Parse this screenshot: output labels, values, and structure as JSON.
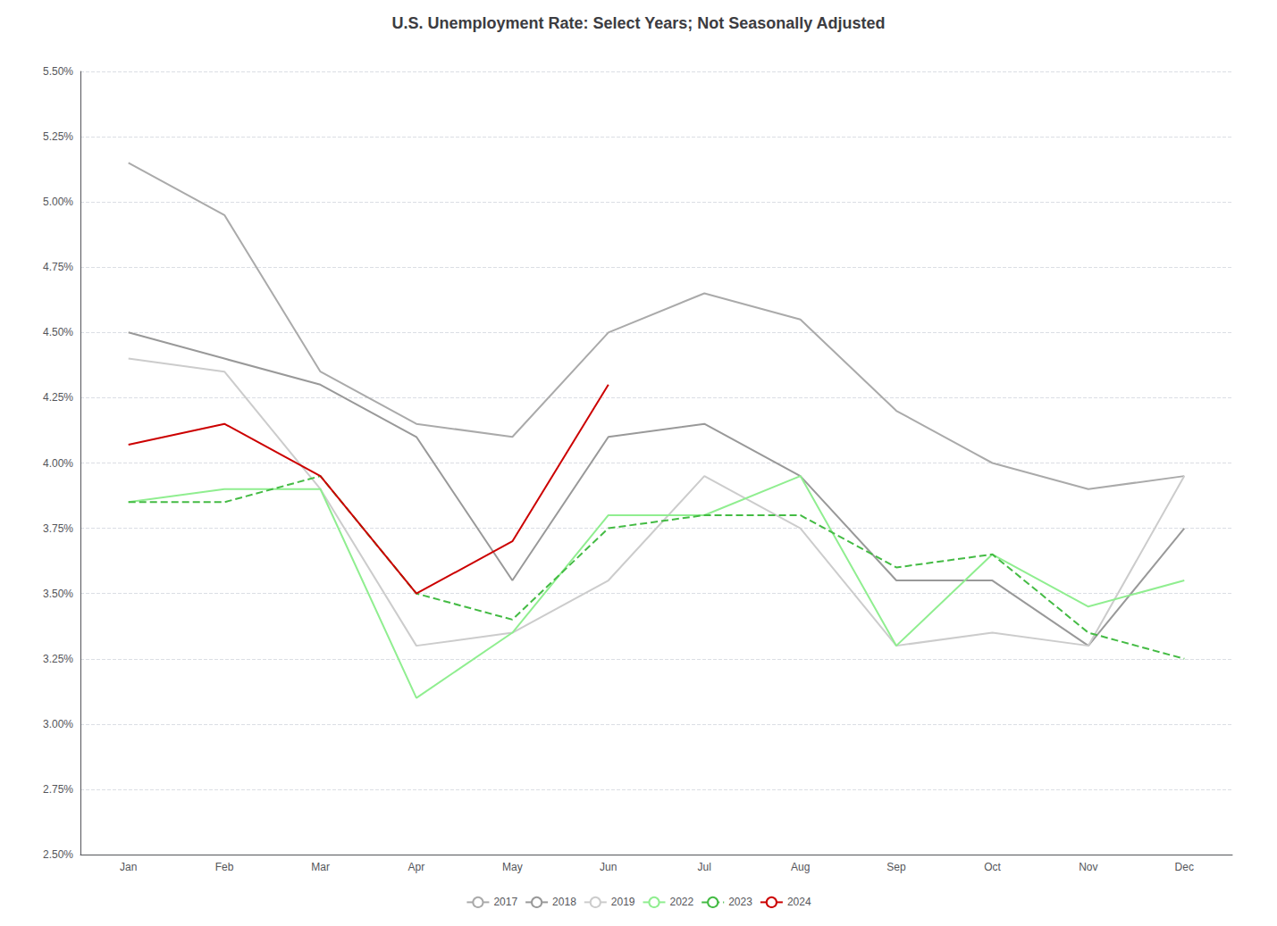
{
  "chart_data": {
    "type": "line",
    "title": "U.S. Unemployment Rate: Select Years; Not Seasonally Adjusted",
    "categories": [
      "Jan",
      "Feb",
      "Mar",
      "Apr",
      "May",
      "Jun",
      "Jul",
      "Aug",
      "Sep",
      "Oct",
      "Nov",
      "Dec"
    ],
    "series": [
      {
        "name": "2017",
        "color": "#aaaaaa",
        "line_style": "solid",
        "values": [
          0.0515,
          0.0495,
          0.0435,
          0.0415,
          0.041,
          0.045,
          0.0465,
          0.0455,
          0.042,
          0.04,
          0.039,
          0.0395
        ]
      },
      {
        "name": "2018",
        "color": "#999999",
        "line_style": "solid",
        "values": [
          0.045,
          0.044,
          0.043,
          0.041,
          0.0355,
          0.041,
          0.0415,
          0.0395,
          0.0355,
          0.0355,
          0.033,
          0.0375
        ]
      },
      {
        "name": "2019",
        "color": "#cccccc",
        "line_style": "solid",
        "values": [
          0.044,
          0.0435,
          0.039,
          0.033,
          0.0335,
          0.0355,
          0.0395,
          0.0375,
          0.033,
          0.0335,
          0.033,
          0.0395
        ]
      },
      {
        "name": "2022",
        "color": "#90ee90",
        "line_style": "solid",
        "values": [
          0.0385,
          0.039,
          0.039,
          0.031,
          0.0335,
          0.038,
          0.038,
          0.0395,
          0.033,
          0.0365,
          0.0345,
          0.0355
        ]
      },
      {
        "name": "2023",
        "color": "#44bb44",
        "line_style": "dashed",
        "values": [
          0.0385,
          0.0385,
          0.0395,
          0.035,
          0.034,
          0.0375,
          0.038,
          0.038,
          0.036,
          0.0365,
          0.0335,
          0.0325
        ]
      },
      {
        "name": "2024",
        "color": "#cc0000",
        "line_style": "solid",
        "values": [
          0.0407,
          0.0415,
          0.0395,
          0.035,
          0.037,
          0.043,
          null,
          null,
          null,
          null,
          null,
          null
        ]
      }
    ],
    "ylim": [
      0.025,
      0.055
    ],
    "yticks": [
      {
        "value": 0.025,
        "label": "2.50%"
      },
      {
        "value": 0.0275,
        "label": "2.75%"
      },
      {
        "value": 0.03,
        "label": "3.00%"
      },
      {
        "value": 0.0325,
        "label": "3.25%"
      },
      {
        "value": 0.035,
        "label": "3.50%"
      },
      {
        "value": 0.0375,
        "label": "3.75%"
      },
      {
        "value": 0.04,
        "label": "4.00%"
      },
      {
        "value": 0.0425,
        "label": "4.25%"
      },
      {
        "value": 0.045,
        "label": "4.50%"
      },
      {
        "value": 0.0475,
        "label": "4.75%"
      },
      {
        "value": 0.05,
        "label": "5.00%"
      },
      {
        "value": 0.0525,
        "label": "5.25%"
      },
      {
        "value": 0.055,
        "label": "5.50%"
      }
    ],
    "grid": true,
    "legend": "lower center"
  }
}
